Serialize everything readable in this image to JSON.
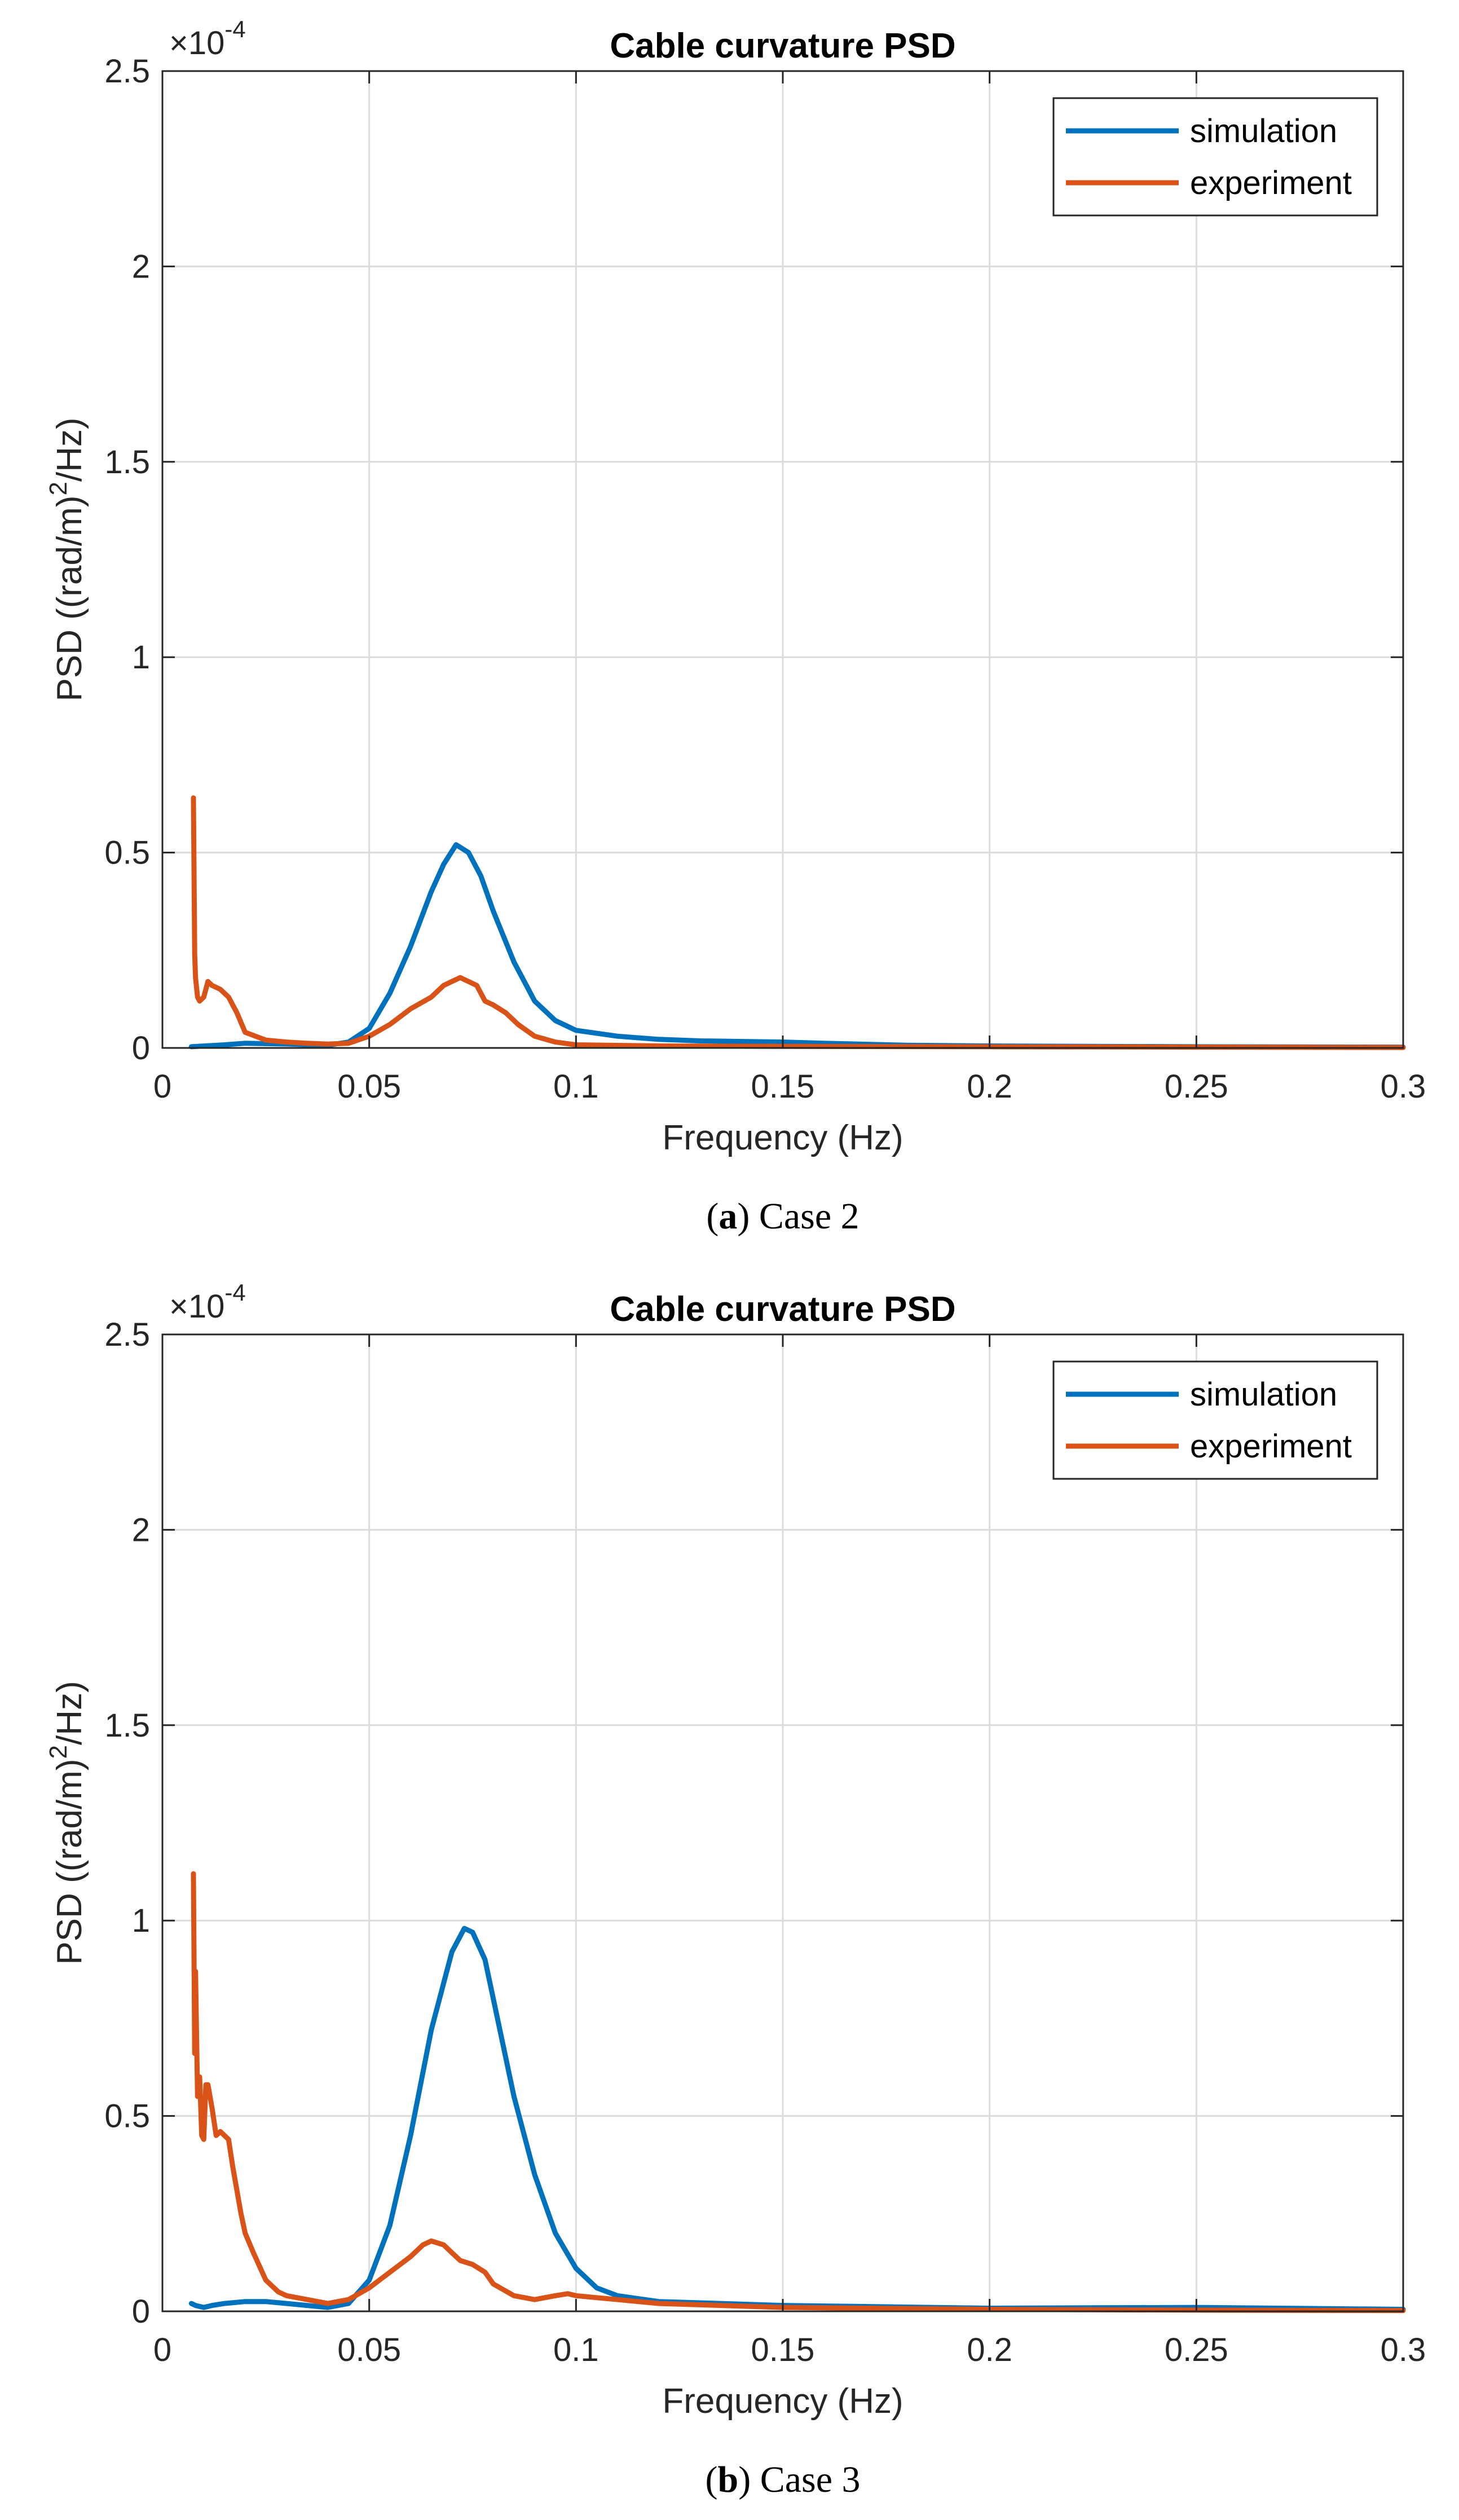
{
  "colors": {
    "simulation": "#0072BD",
    "experiment": "#D95319",
    "grid": "#dcdcdc",
    "axis": "#262626"
  },
  "chart_data": [
    {
      "type": "line",
      "title": "Cable curvature PSD",
      "xlabel": "Frequency (Hz)",
      "ylabel_pre": "PSD ((rad/m)",
      "ylabel_sup": "2",
      "ylabel_post": "/Hz)",
      "y_exponent_base": "×10",
      "y_exponent": "-4",
      "xlim": [
        0,
        0.3
      ],
      "ylim": [
        0,
        2.5
      ],
      "x_ticks": [
        0,
        0.05,
        0.1,
        0.15,
        0.2,
        0.25,
        0.3
      ],
      "x_tick_labels": [
        "0",
        "0.05",
        "0.1",
        "0.15",
        "0.2",
        "0.25",
        "0.3"
      ],
      "y_ticks": [
        0,
        0.5,
        1,
        1.5,
        2,
        2.5
      ],
      "y_tick_labels": [
        "0",
        "0.5",
        "1",
        "1.5",
        "2",
        "2.5"
      ],
      "grid": true,
      "legend_position": "top-right",
      "caption_letter": "a",
      "caption_text": "Case 2",
      "series": [
        {
          "name": "simulation",
          "x": [
            0.007,
            0.015,
            0.02,
            0.03,
            0.04,
            0.045,
            0.05,
            0.055,
            0.06,
            0.065,
            0.068,
            0.071,
            0.074,
            0.077,
            0.08,
            0.085,
            0.09,
            0.095,
            0.1,
            0.11,
            0.12,
            0.13,
            0.15,
            0.16,
            0.18,
            0.2,
            0.25,
            0.3
          ],
          "y": [
            0.003,
            0.008,
            0.012,
            0.01,
            0.007,
            0.015,
            0.05,
            0.14,
            0.26,
            0.4,
            0.47,
            0.52,
            0.5,
            0.44,
            0.35,
            0.22,
            0.12,
            0.07,
            0.045,
            0.03,
            0.022,
            0.018,
            0.015,
            0.012,
            0.007,
            0.005,
            0.003,
            0.002
          ]
        },
        {
          "name": "experiment",
          "x": [
            0.0075,
            0.0078,
            0.008,
            0.0085,
            0.009,
            0.01,
            0.011,
            0.012,
            0.014,
            0.016,
            0.018,
            0.02,
            0.025,
            0.03,
            0.035,
            0.04,
            0.045,
            0.05,
            0.055,
            0.06,
            0.065,
            0.068,
            0.07,
            0.072,
            0.074,
            0.076,
            0.078,
            0.08,
            0.083,
            0.086,
            0.09,
            0.095,
            0.1,
            0.12,
            0.15,
            0.2,
            0.25,
            0.3
          ],
          "y": [
            0.64,
            0.24,
            0.18,
            0.13,
            0.12,
            0.13,
            0.17,
            0.16,
            0.15,
            0.13,
            0.09,
            0.04,
            0.02,
            0.015,
            0.012,
            0.01,
            0.012,
            0.03,
            0.06,
            0.1,
            0.13,
            0.16,
            0.17,
            0.18,
            0.17,
            0.16,
            0.12,
            0.11,
            0.09,
            0.06,
            0.03,
            0.015,
            0.008,
            0.005,
            0.004,
            0.003,
            0.002,
            0.001
          ]
        }
      ]
    },
    {
      "type": "line",
      "title": "Cable curvature PSD",
      "xlabel": "Frequency (Hz)",
      "ylabel_pre": "PSD ((rad/m)",
      "ylabel_sup": "2",
      "ylabel_post": "/Hz)",
      "y_exponent_base": "×10",
      "y_exponent": "-4",
      "xlim": [
        0,
        0.3
      ],
      "ylim": [
        0,
        2.5
      ],
      "x_ticks": [
        0,
        0.05,
        0.1,
        0.15,
        0.2,
        0.25,
        0.3
      ],
      "x_tick_labels": [
        "0",
        "0.05",
        "0.1",
        "0.15",
        "0.2",
        "0.25",
        "0.3"
      ],
      "y_ticks": [
        0,
        0.5,
        1,
        1.5,
        2,
        2.5
      ],
      "y_tick_labels": [
        "0",
        "0.5",
        "1",
        "1.5",
        "2",
        "2.5"
      ],
      "grid": true,
      "legend_position": "top-right",
      "caption_letter": "b",
      "caption_text": "Case 3",
      "series": [
        {
          "name": "simulation",
          "x": [
            0.007,
            0.008,
            0.01,
            0.012,
            0.015,
            0.02,
            0.025,
            0.03,
            0.035,
            0.04,
            0.045,
            0.05,
            0.055,
            0.06,
            0.065,
            0.07,
            0.073,
            0.075,
            0.078,
            0.08,
            0.085,
            0.09,
            0.095,
            0.1,
            0.105,
            0.11,
            0.12,
            0.15,
            0.2,
            0.25,
            0.3
          ],
          "y": [
            0.02,
            0.015,
            0.01,
            0.015,
            0.02,
            0.025,
            0.025,
            0.02,
            0.015,
            0.01,
            0.02,
            0.08,
            0.22,
            0.45,
            0.72,
            0.92,
            0.98,
            0.97,
            0.9,
            0.8,
            0.55,
            0.35,
            0.2,
            0.11,
            0.06,
            0.04,
            0.025,
            0.015,
            0.008,
            0.01,
            0.005
          ]
        },
        {
          "name": "experiment",
          "x": [
            0.0075,
            0.0078,
            0.008,
            0.0085,
            0.009,
            0.0095,
            0.01,
            0.0105,
            0.011,
            0.012,
            0.013,
            0.014,
            0.016,
            0.017,
            0.018,
            0.019,
            0.02,
            0.022,
            0.025,
            0.028,
            0.03,
            0.035,
            0.04,
            0.045,
            0.05,
            0.055,
            0.06,
            0.063,
            0.065,
            0.068,
            0.07,
            0.072,
            0.075,
            0.078,
            0.08,
            0.085,
            0.09,
            0.095,
            0.098,
            0.1,
            0.105,
            0.11,
            0.12,
            0.15,
            0.2,
            0.25,
            0.3
          ],
          "y": [
            1.12,
            0.66,
            0.87,
            0.55,
            0.6,
            0.45,
            0.44,
            0.58,
            0.58,
            0.52,
            0.45,
            0.46,
            0.44,
            0.37,
            0.31,
            0.25,
            0.2,
            0.15,
            0.08,
            0.05,
            0.04,
            0.03,
            0.02,
            0.03,
            0.06,
            0.1,
            0.14,
            0.17,
            0.18,
            0.17,
            0.15,
            0.13,
            0.12,
            0.1,
            0.07,
            0.04,
            0.03,
            0.04,
            0.045,
            0.04,
            0.035,
            0.03,
            0.02,
            0.01,
            0.005,
            0.003,
            0.002
          ]
        }
      ]
    }
  ]
}
